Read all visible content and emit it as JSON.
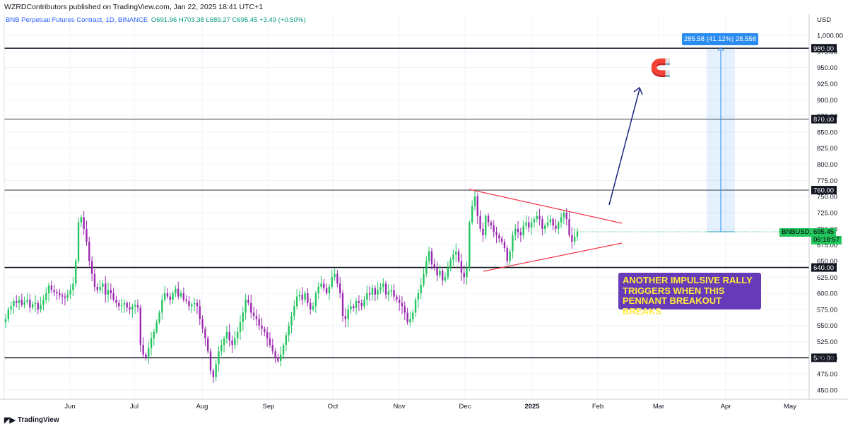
{
  "header": {
    "published": "WZRDContributors published on TradingView.com, Jan 22, 2025 18:41 UTC+1"
  },
  "symbol_info": {
    "name": "BNB Perpetual Futures Contract, 1D, BINANCE",
    "ohlc": "O691.96 H703.38 L689.27 C695.45 +3.49 (+0.50%)"
  },
  "footer": {
    "brand": "TradingView"
  },
  "colors": {
    "up": "#22c55e",
    "down": "#9c27b0",
    "hline": "#131722",
    "trendline": "#f23645",
    "arrow": "#1a237e",
    "callout_bg": "#673ab7",
    "callout_text": "#ffeb3b",
    "measure": "#2a8cf0"
  },
  "annotations": {
    "callout_lines": [
      "ANOTHER IMPULSIVE RALLY",
      "TRIGGERS WHEN THIS",
      "PENNANT BREAKOUT BREAKS"
    ],
    "measure_label": "285.58 (41.12%) 28,558",
    "magnet_icon": "magnet-icon"
  },
  "price_axis": {
    "currency": "USD",
    "current_symbol": "BNBUSD.P",
    "current_price": "695.45",
    "countdown": "06:18:57"
  },
  "chart_data": {
    "type": "candlestick",
    "title": "BNB Perpetual Futures Contract, 1D, BINANCE",
    "ylim": [
      440,
      1010
    ],
    "y_ticks": [
      "450.00",
      "475.00",
      "500.00",
      "525.00",
      "550.00",
      "575.00",
      "600.00",
      "625.00",
      "650.00",
      "675.00",
      "700.00",
      "725.00",
      "750.00",
      "775.00",
      "800.00",
      "825.00",
      "850.00",
      "875.00",
      "900.00",
      "925.00",
      "950.00",
      "975.00",
      "1,000.00"
    ],
    "x_ticks": [
      "Jun",
      "Jul",
      "Aug",
      "Sep",
      "Oct",
      "Nov",
      "Dec",
      "2025",
      "Feb",
      "Mar",
      "Apr",
      "May"
    ],
    "key_levels": [
      "980.00",
      "870.00",
      "760.00",
      "640.00",
      "500.00"
    ],
    "closes": [
      560,
      575,
      580,
      588,
      585,
      590,
      582,
      587,
      590,
      578,
      583,
      585,
      575,
      582,
      590,
      600,
      612,
      605,
      602,
      600,
      597,
      595,
      593,
      598,
      605,
      615,
      650,
      710,
      718,
      700,
      680,
      650,
      630,
      610,
      605,
      610,
      615,
      598,
      605,
      600,
      590,
      585,
      580,
      582,
      585,
      578,
      575,
      580,
      582,
      578,
      520,
      505,
      500,
      515,
      530,
      540,
      555,
      570,
      590,
      600,
      595,
      590,
      600,
      607,
      595,
      600,
      590,
      588,
      580,
      583,
      585,
      580,
      560,
      545,
      530,
      510,
      480,
      470,
      490,
      510,
      520,
      530,
      540,
      527,
      520,
      530,
      540,
      555,
      570,
      590,
      585,
      570,
      565,
      560,
      550,
      545,
      540,
      530,
      520,
      510,
      500,
      495,
      505,
      520,
      535,
      550,
      565,
      580,
      595,
      598,
      590,
      600,
      585,
      575,
      580,
      600,
      610,
      615,
      608,
      600,
      610,
      625,
      630,
      615,
      600,
      565,
      560,
      575,
      580,
      577,
      588,
      585,
      580,
      590,
      600,
      598,
      608,
      598,
      605,
      610,
      615,
      598,
      603,
      605,
      595,
      590,
      585,
      580,
      570,
      555,
      560,
      570,
      590,
      600,
      613,
      630,
      650,
      665,
      645,
      640,
      628,
      635,
      620,
      625,
      640,
      652,
      660,
      665,
      650,
      632,
      625,
      640,
      710,
      735,
      750,
      720,
      700,
      690,
      720,
      710,
      705,
      695,
      690,
      685,
      680,
      670,
      650,
      665,
      690,
      700,
      695,
      690,
      705,
      710,
      702,
      710,
      715,
      720,
      715,
      700,
      705,
      710,
      715,
      705,
      700,
      710,
      718,
      725,
      715,
      690,
      680,
      688,
      695
    ]
  }
}
